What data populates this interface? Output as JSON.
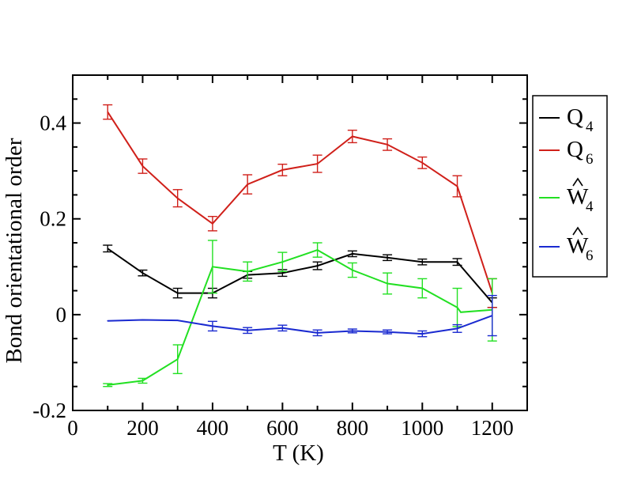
{
  "chart_data": {
    "type": "line",
    "xlabel": "T (K)",
    "ylabel": "Bond orientational order",
    "xlim": [
      0,
      1300
    ],
    "ylim": [
      -0.2,
      0.5
    ],
    "x_ticks": [
      0,
      200,
      400,
      600,
      800,
      1000,
      1200
    ],
    "y_ticks": [
      -0.2,
      0,
      0.2,
      0.4
    ],
    "x_tick_labels": [
      "0",
      "200",
      "400",
      "600",
      "800",
      "1000",
      "1200"
    ],
    "y_tick_labels": [
      "-0.2",
      "0",
      "0.2",
      "0.4"
    ],
    "grid": false,
    "legend_position": "right-outside-top",
    "series": [
      {
        "name": "Q4",
        "legend_main": "Q",
        "legend_sub": "4",
        "legend_hat": false,
        "color": "#000000",
        "x": [
          100,
          200,
          300,
          400,
          500,
          600,
          700,
          800,
          900,
          1000,
          1100,
          1200
        ],
        "values": [
          0.138,
          0.087,
          0.045,
          0.045,
          0.083,
          0.087,
          0.102,
          0.127,
          0.119,
          0.11,
          0.11,
          0.025
        ],
        "errors": [
          0.007,
          0.006,
          0.01,
          0.01,
          0.007,
          0.007,
          0.008,
          0.006,
          0.006,
          0.006,
          0.007,
          0.01
        ]
      },
      {
        "name": "Q6",
        "legend_main": "Q",
        "legend_sub": "6",
        "legend_hat": false,
        "color": "#d0201a",
        "x": [
          100,
          200,
          300,
          400,
          500,
          600,
          700,
          800,
          900,
          1000,
          1100,
          1200
        ],
        "values": [
          0.423,
          0.31,
          0.243,
          0.19,
          0.272,
          0.302,
          0.315,
          0.372,
          0.355,
          0.317,
          0.268,
          0.045
        ],
        "errors": [
          0.015,
          0.015,
          0.018,
          0.015,
          0.02,
          0.012,
          0.018,
          0.013,
          0.012,
          0.012,
          0.022,
          0.03
        ]
      },
      {
        "name": "W4",
        "legend_main": "W",
        "legend_sub": "4",
        "legend_hat": true,
        "color": "#22e022",
        "x": [
          100,
          200,
          300,
          400,
          500,
          600,
          700,
          800,
          900,
          1000,
          1100,
          1110,
          1200
        ],
        "values": [
          -0.147,
          -0.138,
          -0.093,
          0.1,
          0.09,
          0.11,
          0.135,
          0.093,
          0.065,
          0.055,
          0.015,
          0.005,
          0.01
        ],
        "errors": [
          0.003,
          0.005,
          0.03,
          0.055,
          0.02,
          0.02,
          0.015,
          0.015,
          0.022,
          0.02,
          0.04,
          0.0,
          0.065
        ],
        "error_shown": [
          true,
          true,
          true,
          true,
          true,
          true,
          true,
          true,
          true,
          true,
          true,
          false,
          true
        ]
      },
      {
        "name": "W6",
        "legend_main": "W",
        "legend_sub": "6",
        "legend_hat": true,
        "color": "#1a2ad0",
        "x": [
          100,
          200,
          300,
          400,
          500,
          600,
          700,
          800,
          900,
          1000,
          1100,
          1200
        ],
        "values": [
          -0.013,
          -0.011,
          -0.012,
          -0.024,
          -0.033,
          -0.028,
          -0.038,
          -0.034,
          -0.036,
          -0.04,
          -0.029,
          -0.002
        ],
        "errors": [
          0.0,
          0.0,
          0.0,
          0.01,
          0.006,
          0.006,
          0.006,
          0.004,
          0.004,
          0.006,
          0.008,
          0.042
        ],
        "error_shown": [
          false,
          false,
          false,
          true,
          true,
          true,
          true,
          true,
          true,
          true,
          true,
          true
        ]
      }
    ]
  }
}
